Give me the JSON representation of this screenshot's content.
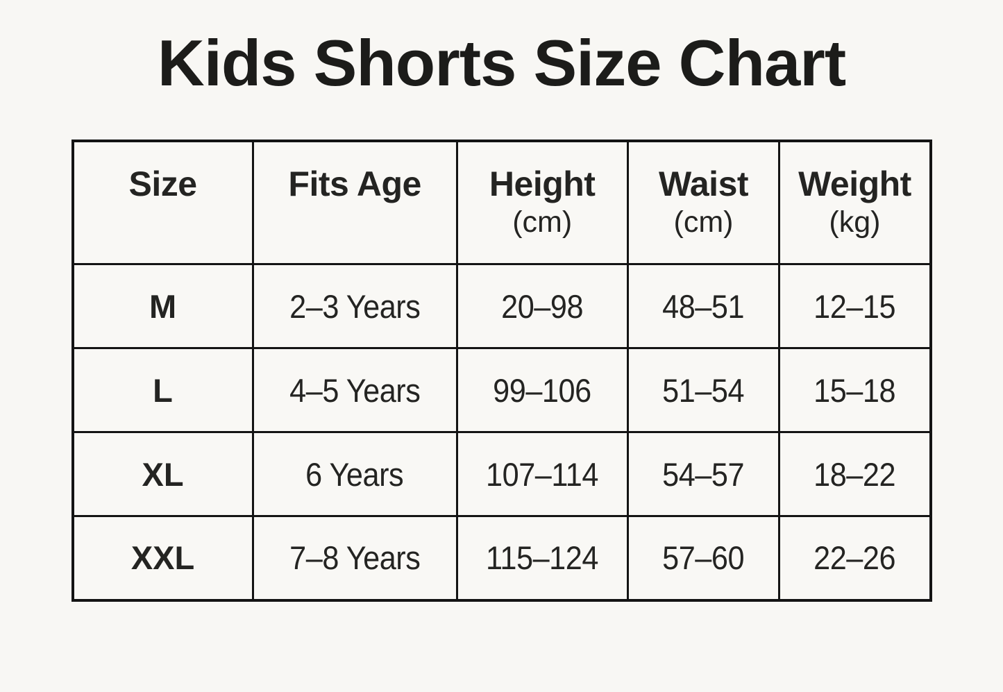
{
  "title": "Kids Shorts Size Chart",
  "colors": {
    "background": "#f8f7f4",
    "text": "#242422",
    "border": "#141414"
  },
  "table": {
    "headers": [
      {
        "label": "Size",
        "unit": ""
      },
      {
        "label": "Fits Age",
        "unit": ""
      },
      {
        "label": "Height",
        "unit": "(cm)"
      },
      {
        "label": "Waist",
        "unit": "(cm)"
      },
      {
        "label": "Weight",
        "unit": "(kg)"
      }
    ],
    "rows": [
      [
        "M",
        "2–3 Years",
        "20–98",
        "48–51",
        "12–15"
      ],
      [
        "L",
        "4–5 Years",
        "99–106",
        "51–54",
        "15–18"
      ],
      [
        "XL",
        "6 Years",
        "107–114",
        "54–57",
        "18–22"
      ],
      [
        "XXL",
        "7–8 Years",
        "115–124",
        "57–60",
        "22–26"
      ]
    ]
  },
  "chart_data": {
    "type": "table",
    "title": "Kids Shorts Size Chart",
    "columns": [
      "Size",
      "Fits Age",
      "Height (cm)",
      "Waist (cm)",
      "Weight (kg)"
    ],
    "rows": [
      [
        "M",
        "2–3 Years",
        "20–98",
        "48–51",
        "12–15"
      ],
      [
        "L",
        "4–5 Years",
        "99–106",
        "51–54",
        "15–18"
      ],
      [
        "XL",
        "6 Years",
        "107–114",
        "54–57",
        "18–22"
      ],
      [
        "XXL",
        "7–8 Years",
        "115–124",
        "57–60",
        "22–26"
      ]
    ]
  }
}
